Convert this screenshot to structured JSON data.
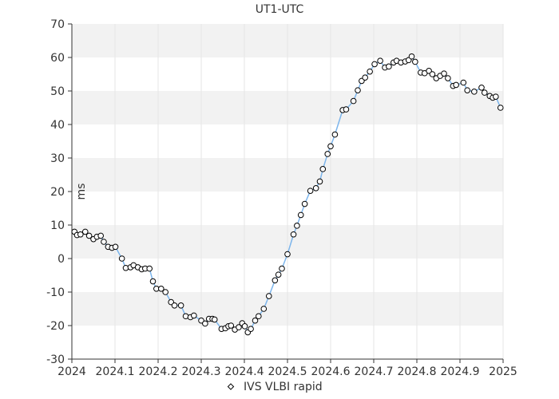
{
  "chart_data": {
    "type": "scatter",
    "title": "UT1-UTC",
    "xlabel": "",
    "ylabel": "ms",
    "xlim": [
      2024,
      2025
    ],
    "ylim": [
      -30,
      70
    ],
    "xticks": [
      "2024",
      "2024.1",
      "2024.2",
      "2024.3",
      "2024.4",
      "2024.5",
      "2024.6",
      "2024.7",
      "2024.8",
      "2024.9",
      "2025"
    ],
    "yticks": [
      "70",
      "60",
      "50",
      "40",
      "30",
      "20",
      "10",
      "0",
      "-10",
      "-20",
      "-30"
    ],
    "grid": "horizontal bands",
    "legend_position": "bottom-center",
    "colors": {
      "line": "#7cb5ec",
      "marker_fill": "#ffffff",
      "marker_stroke": "#000000",
      "band": "#f2f2f2"
    },
    "series": [
      {
        "name": "IVS VLBI rapid",
        "x": [
          2024.006,
          2024.012,
          2024.02,
          2024.031,
          2024.04,
          2024.05,
          2024.058,
          2024.067,
          2024.074,
          2024.084,
          2024.093,
          2024.101,
          2024.116,
          2024.125,
          2024.136,
          2024.143,
          2024.153,
          2024.162,
          2024.17,
          2024.18,
          2024.188,
          2024.196,
          2024.207,
          2024.217,
          2024.23,
          2024.238,
          2024.253,
          2024.264,
          2024.275,
          2024.283,
          2024.3,
          2024.309,
          2024.318,
          2024.326,
          2024.331,
          2024.347,
          2024.356,
          2024.363,
          2024.369,
          2024.378,
          2024.387,
          2024.395,
          2024.401,
          2024.408,
          2024.415,
          2024.425,
          2024.433,
          2024.445,
          2024.457,
          2024.471,
          2024.479,
          2024.487,
          2024.5,
          2024.514,
          2024.522,
          2024.531,
          2024.54,
          2024.553,
          2024.566,
          2024.575,
          2024.582,
          2024.593,
          2024.6,
          2024.61,
          2024.628,
          2024.636,
          2024.653,
          2024.663,
          2024.672,
          2024.68,
          2024.691,
          2024.702,
          2024.715,
          2024.726,
          2024.735,
          2024.746,
          2024.753,
          2024.763,
          2024.773,
          2024.781,
          2024.788,
          2024.796,
          2024.809,
          2024.818,
          2024.828,
          2024.836,
          2024.845,
          2024.854,
          2024.863,
          2024.872,
          2024.884,
          2024.891,
          2024.908,
          2024.917,
          2024.933,
          2024.95,
          2024.957,
          2024.969,
          2024.976,
          2024.983,
          2024.994
        ],
        "values": [
          8.0,
          7.0,
          7.2,
          8.0,
          6.8,
          5.8,
          6.5,
          6.8,
          5.0,
          3.5,
          3.2,
          3.5,
          0.0,
          -2.8,
          -2.6,
          -2.0,
          -2.6,
          -3.2,
          -3.0,
          -3.0,
          -6.8,
          -9.0,
          -9.0,
          -10.0,
          -13.0,
          -14.0,
          -14.0,
          -17.2,
          -17.5,
          -17.0,
          -18.5,
          -19.4,
          -18.0,
          -18.0,
          -18.2,
          -21.0,
          -20.8,
          -20.2,
          -20.0,
          -21.2,
          -20.5,
          -19.3,
          -20.2,
          -22.0,
          -21.0,
          -18.5,
          -17.2,
          -15.0,
          -11.2,
          -6.5,
          -4.8,
          -3.0,
          1.3,
          7.2,
          9.8,
          13.0,
          16.3,
          20.2,
          21.0,
          23.0,
          26.7,
          31.2,
          33.5,
          37.0,
          44.3,
          44.5,
          47.0,
          50.2,
          53.0,
          54.0,
          55.8,
          58.0,
          59.0,
          57.0,
          57.3,
          58.5,
          59.0,
          58.5,
          58.8,
          59.2,
          60.3,
          58.7,
          55.5,
          55.3,
          56.0,
          55.0,
          53.8,
          54.5,
          55.2,
          53.8,
          51.5,
          51.8,
          52.5,
          50.2,
          49.8,
          51.0,
          49.5,
          48.5,
          48.0,
          48.3,
          45.0
        ]
      }
    ]
  }
}
